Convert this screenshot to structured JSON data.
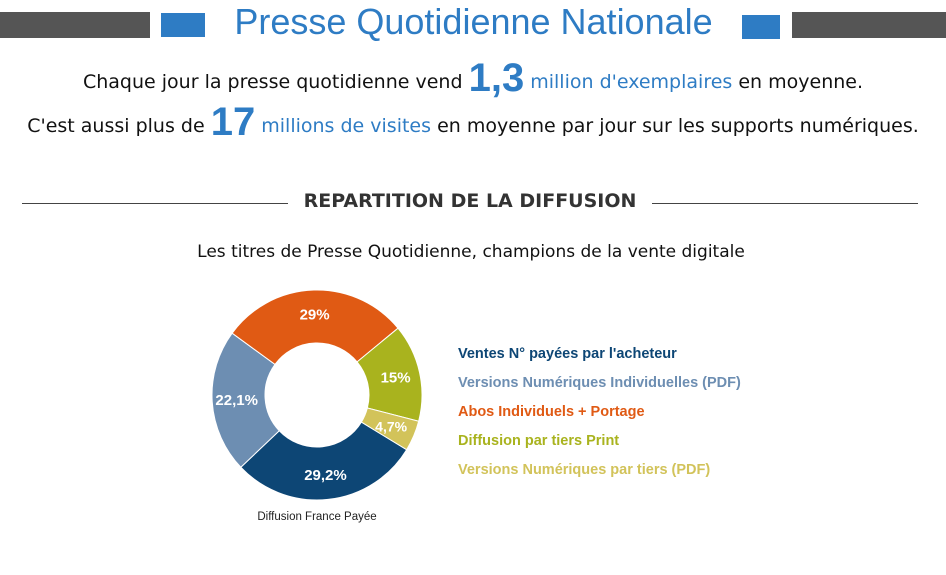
{
  "header": {
    "title": "Presse Quotidienne Nationale"
  },
  "intro": {
    "line1": {
      "prefix": "Chaque jour la presse quotidienne vend",
      "big": "1,3",
      "highlight": "million d'exemplaires",
      "suffix": "en moyenne."
    },
    "line2": {
      "prefix": "C'est aussi plus de",
      "big": "17",
      "highlight": "millions de visites",
      "suffix": "en moyenne par jour sur les supports numériques."
    }
  },
  "section_title": "REPARTITION DE LA DIFFUSION",
  "chart_subtitle": "Les titres de Presse Quotidienne, champions de la vente digitale",
  "chart_data": {
    "type": "pie",
    "donut": true,
    "caption": "Diffusion France Payée",
    "slices": [
      {
        "name": "Ventes N° payées par l'acheteur",
        "value": 29.2,
        "label": "29,2%",
        "color": "#0d4675"
      },
      {
        "name": "Versions Numériques Individuelles (PDF)",
        "value": 22.1,
        "label": "22,1%",
        "color": "#6d8eb2"
      },
      {
        "name": "Abos Individuels + Portage",
        "value": 29,
        "label": "29%",
        "color": "#e05a14"
      },
      {
        "name": "Diffusion par tiers Print",
        "value": 15,
        "label": "15%",
        "color": "#a9b31e"
      },
      {
        "name": "Versions Numériques par tiers (PDF)",
        "value": 4.7,
        "label": "4,7%",
        "color": "#d2c35a"
      }
    ],
    "legend_position": "right"
  },
  "colors": {
    "accent": "#2e7cc4",
    "header_bar": "#555555"
  }
}
